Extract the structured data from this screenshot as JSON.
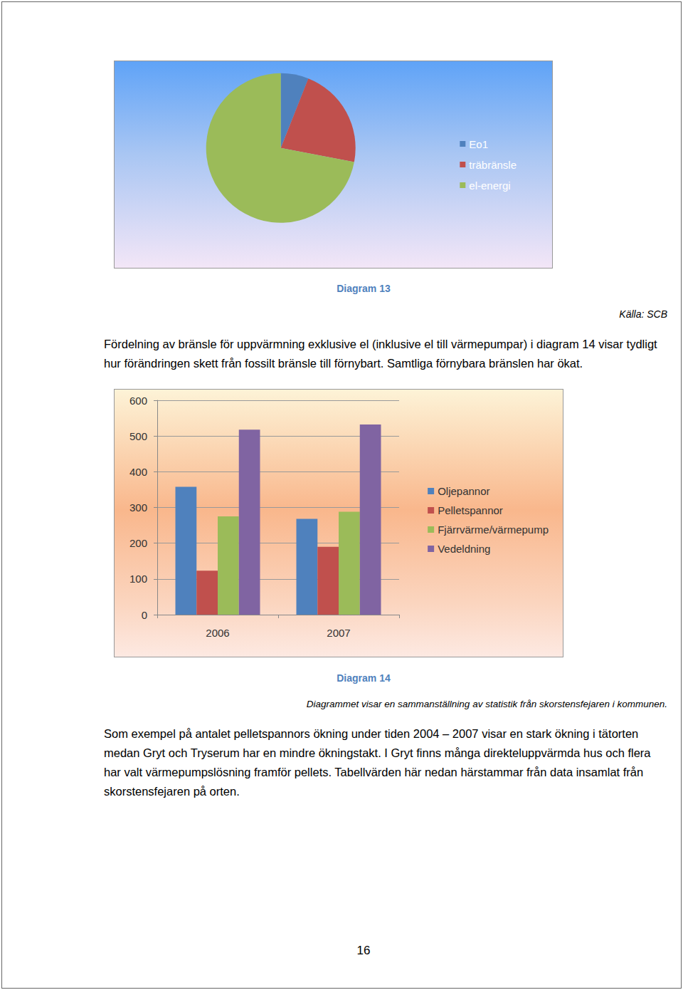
{
  "chart_data": [
    {
      "type": "pie",
      "categories": [
        "Eo1",
        "träbränsle",
        "el-energi"
      ],
      "values": [
        6,
        22,
        72
      ],
      "colors": [
        "#4f81bd",
        "#c0504d",
        "#9bbb59"
      ],
      "legend": "right"
    },
    {
      "type": "bar",
      "categories": [
        "2006",
        "2007"
      ],
      "series": [
        {
          "name": "Oljepannor",
          "color": "#4f81bd",
          "values": [
            358,
            268
          ]
        },
        {
          "name": "Pelletspannor",
          "color": "#c0504d",
          "values": [
            123,
            190
          ]
        },
        {
          "name": "Fjärrvärme/värmepump",
          "color": "#9bbb59",
          "values": [
            275,
            288
          ]
        },
        {
          "name": "Vedeldning",
          "color": "#8064a2",
          "values": [
            518,
            532
          ]
        }
      ],
      "ylim": [
        0,
        600
      ],
      "yticks": [
        0,
        100,
        200,
        300,
        400,
        500,
        600
      ],
      "grid": true,
      "legend": "right"
    }
  ],
  "document": {
    "caption_13": "Diagram 13",
    "source": "Källa: SCB",
    "paragraph_1": "Fördelning av bränsle för uppvärmning exklusive el (inklusive el till värmepumpar) i diagram 14 visar tydligt hur förändringen skett från fossilt bränsle till förnybart. Samtliga förnybara bränslen har ökat.",
    "caption_14": "Diagram 14",
    "note_14": "Diagrammet visar en sammanställning av statistik från skorstensfejaren i kommunen.",
    "paragraph_2": "Som exempel på antalet pelletspannors ökning under tiden 2004 – 2007 visar en stark ökning i tätorten medan Gryt och Tryserum har en mindre ökningstakt. I Gryt finns många direkteluppvärmda hus och flera har valt värmepumpslösning framför pellets. Tabellvärden här nedan härstammar från data insamlat från skorstensfejaren på orten.",
    "page_number": 16
  }
}
